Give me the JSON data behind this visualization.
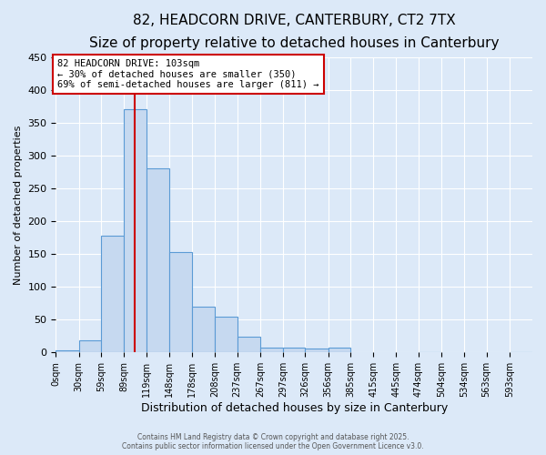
{
  "title": "82, HEADCORN DRIVE, CANTERBURY, CT2 7TX",
  "subtitle": "Size of property relative to detached houses in Canterbury",
  "xlabel": "Distribution of detached houses by size in Canterbury",
  "ylabel": "Number of detached properties",
  "bin_labels": [
    "0sqm",
    "30sqm",
    "59sqm",
    "89sqm",
    "119sqm",
    "148sqm",
    "178sqm",
    "208sqm",
    "237sqm",
    "267sqm",
    "297sqm",
    "326sqm",
    "356sqm",
    "385sqm",
    "415sqm",
    "445sqm",
    "474sqm",
    "504sqm",
    "534sqm",
    "563sqm",
    "593sqm"
  ],
  "bin_edges": [
    0,
    30,
    59,
    89,
    119,
    148,
    178,
    208,
    237,
    267,
    297,
    326,
    356,
    385,
    415,
    445,
    474,
    504,
    534,
    563,
    593
  ],
  "bar_values": [
    3,
    18,
    178,
    370,
    280,
    153,
    70,
    55,
    24,
    8,
    7,
    6,
    7,
    0,
    0,
    0,
    1,
    0,
    0,
    0,
    1
  ],
  "bar_color": "#c6d9f0",
  "bar_edge_color": "#5b9bd5",
  "property_line_x": 103,
  "property_line_color": "#cc0000",
  "annotation_title": "82 HEADCORN DRIVE: 103sqm",
  "annotation_line1": "← 30% of detached houses are smaller (350)",
  "annotation_line2": "69% of semi-detached houses are larger (811) →",
  "annotation_box_facecolor": "#ffffff",
  "annotation_box_edgecolor": "#cc0000",
  "ylim": [
    0,
    450
  ],
  "yticks": [
    0,
    50,
    100,
    150,
    200,
    250,
    300,
    350,
    400,
    450
  ],
  "background_color": "#dce9f8",
  "footer_line1": "Contains HM Land Registry data © Crown copyright and database right 2025.",
  "footer_line2": "Contains public sector information licensed under the Open Government Licence v3.0.",
  "title_fontsize": 11,
  "subtitle_fontsize": 9,
  "grid_color": "#ffffff",
  "figsize": [
    6.0,
    5.0
  ],
  "dpi": 100
}
